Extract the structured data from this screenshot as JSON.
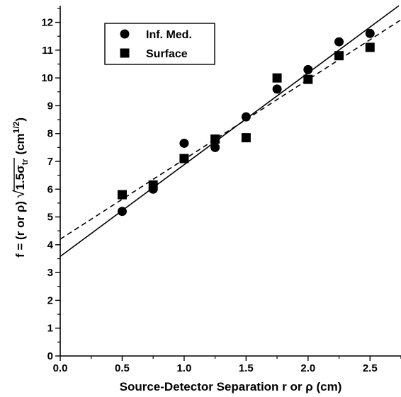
{
  "chart_data": {
    "type": "scatter",
    "xlabel": "Source-Detector Separation r or ρ (cm)",
    "ylabel": {
      "prefix": "f = (r or ρ)",
      "radicand": "1.5σ",
      "radicand_sub": "tr",
      "unit_open": "(cm",
      "unit_sup": "1/2",
      "unit_close": ")"
    },
    "xlim": [
      0,
      2.75
    ],
    "ylim": [
      0,
      12.6
    ],
    "xticks": [
      "0.0",
      "0.5",
      "1.0",
      "1.5",
      "2.0",
      "2.5"
    ],
    "yticks": [
      "0",
      "1",
      "2",
      "3",
      "4",
      "5",
      "6",
      "7",
      "8",
      "9",
      "10",
      "11",
      "12"
    ],
    "legend_position": "top-left",
    "series": [
      {
        "name": "Inf. Med.",
        "marker": "circle",
        "points": [
          [
            0.5,
            5.2
          ],
          [
            0.75,
            6.0
          ],
          [
            1.0,
            7.65
          ],
          [
            1.25,
            7.5
          ],
          [
            1.5,
            8.6
          ],
          [
            1.75,
            9.6
          ],
          [
            2.0,
            10.3
          ],
          [
            2.25,
            11.3
          ],
          [
            2.5,
            11.6
          ]
        ],
        "fit": {
          "style": "solid",
          "intercept": 3.58,
          "slope": 3.3
        }
      },
      {
        "name": "Surface",
        "marker": "square",
        "points": [
          [
            0.5,
            5.8
          ],
          [
            0.75,
            6.15
          ],
          [
            1.0,
            7.1
          ],
          [
            1.25,
            7.8
          ],
          [
            1.5,
            7.85
          ],
          [
            1.75,
            10.0
          ],
          [
            2.0,
            9.95
          ],
          [
            2.25,
            10.8
          ],
          [
            2.5,
            11.1
          ]
        ],
        "fit": {
          "style": "dashed",
          "intercept": 4.2,
          "slope": 2.87
        }
      }
    ]
  }
}
